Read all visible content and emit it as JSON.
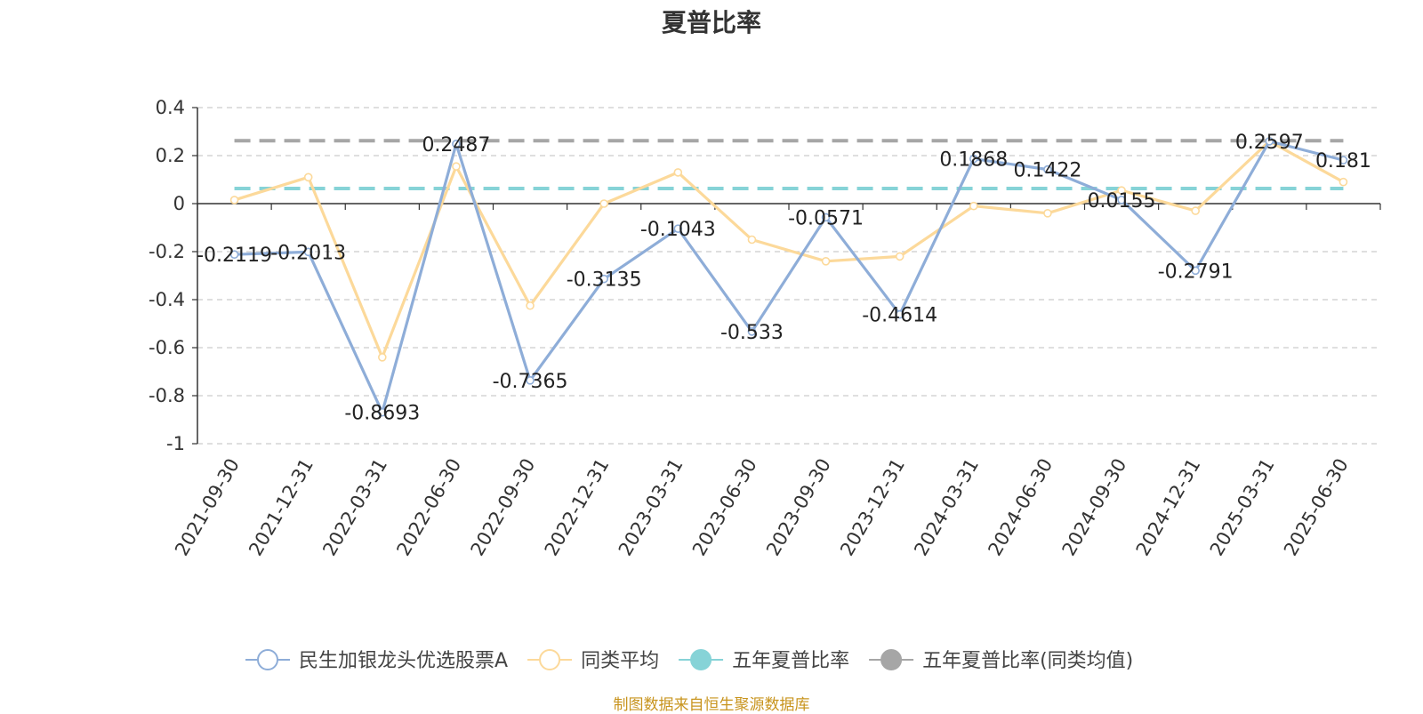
{
  "title": "夏普比率",
  "source": "制图数据来自恒生聚源数据库",
  "chart_data": {
    "type": "line",
    "x": [
      "2021-09-30",
      "2021-12-31",
      "2022-03-31",
      "2022-06-30",
      "2022-09-30",
      "2022-12-31",
      "2023-03-31",
      "2023-06-30",
      "2023-09-30",
      "2023-12-31",
      "2024-03-31",
      "2024-06-30",
      "2024-09-30",
      "2024-12-31",
      "2025-03-31",
      "2025-06-30"
    ],
    "ylim": [
      -1,
      0.4
    ],
    "yticks": [
      0.4,
      0.2,
      0,
      -0.2,
      -0.4,
      -0.6,
      -0.8,
      -1
    ],
    "grid": true,
    "legend_position": "bottom",
    "series": [
      {
        "name": "民生加银龙头优选股票A",
        "color": "#8eadd8",
        "values": [
          -0.2119,
          -0.2013,
          -0.8693,
          0.2487,
          -0.7365,
          -0.3135,
          -0.1043,
          -0.533,
          -0.0571,
          -0.4614,
          0.1868,
          0.1422,
          0.0155,
          -0.2791,
          0.2597,
          0.181
        ],
        "labels": [
          "-0.2119",
          "-0.2013",
          "-0.8693",
          "0.2487",
          "-0.7365",
          "-0.3135",
          "-0.1043",
          "-0.533",
          "-0.0571",
          "-0.4614",
          "0.1868",
          "0.1422",
          "0.0155",
          "-0.2791",
          "0.2597",
          "0.181"
        ]
      },
      {
        "name": "同类平均",
        "color": "#fcd99a",
        "values": [
          0.015,
          0.11,
          -0.64,
          0.155,
          -0.425,
          0.0,
          0.13,
          -0.15,
          -0.24,
          -0.22,
          -0.01,
          -0.04,
          0.055,
          -0.03,
          0.26,
          0.09
        ]
      },
      {
        "name": "五年夏普比率",
        "color": "#86d3d7",
        "constant": 0.063
      },
      {
        "name": "五年夏普比率(同类均值)",
        "color": "#a6a6a6",
        "constant": 0.262
      }
    ]
  }
}
